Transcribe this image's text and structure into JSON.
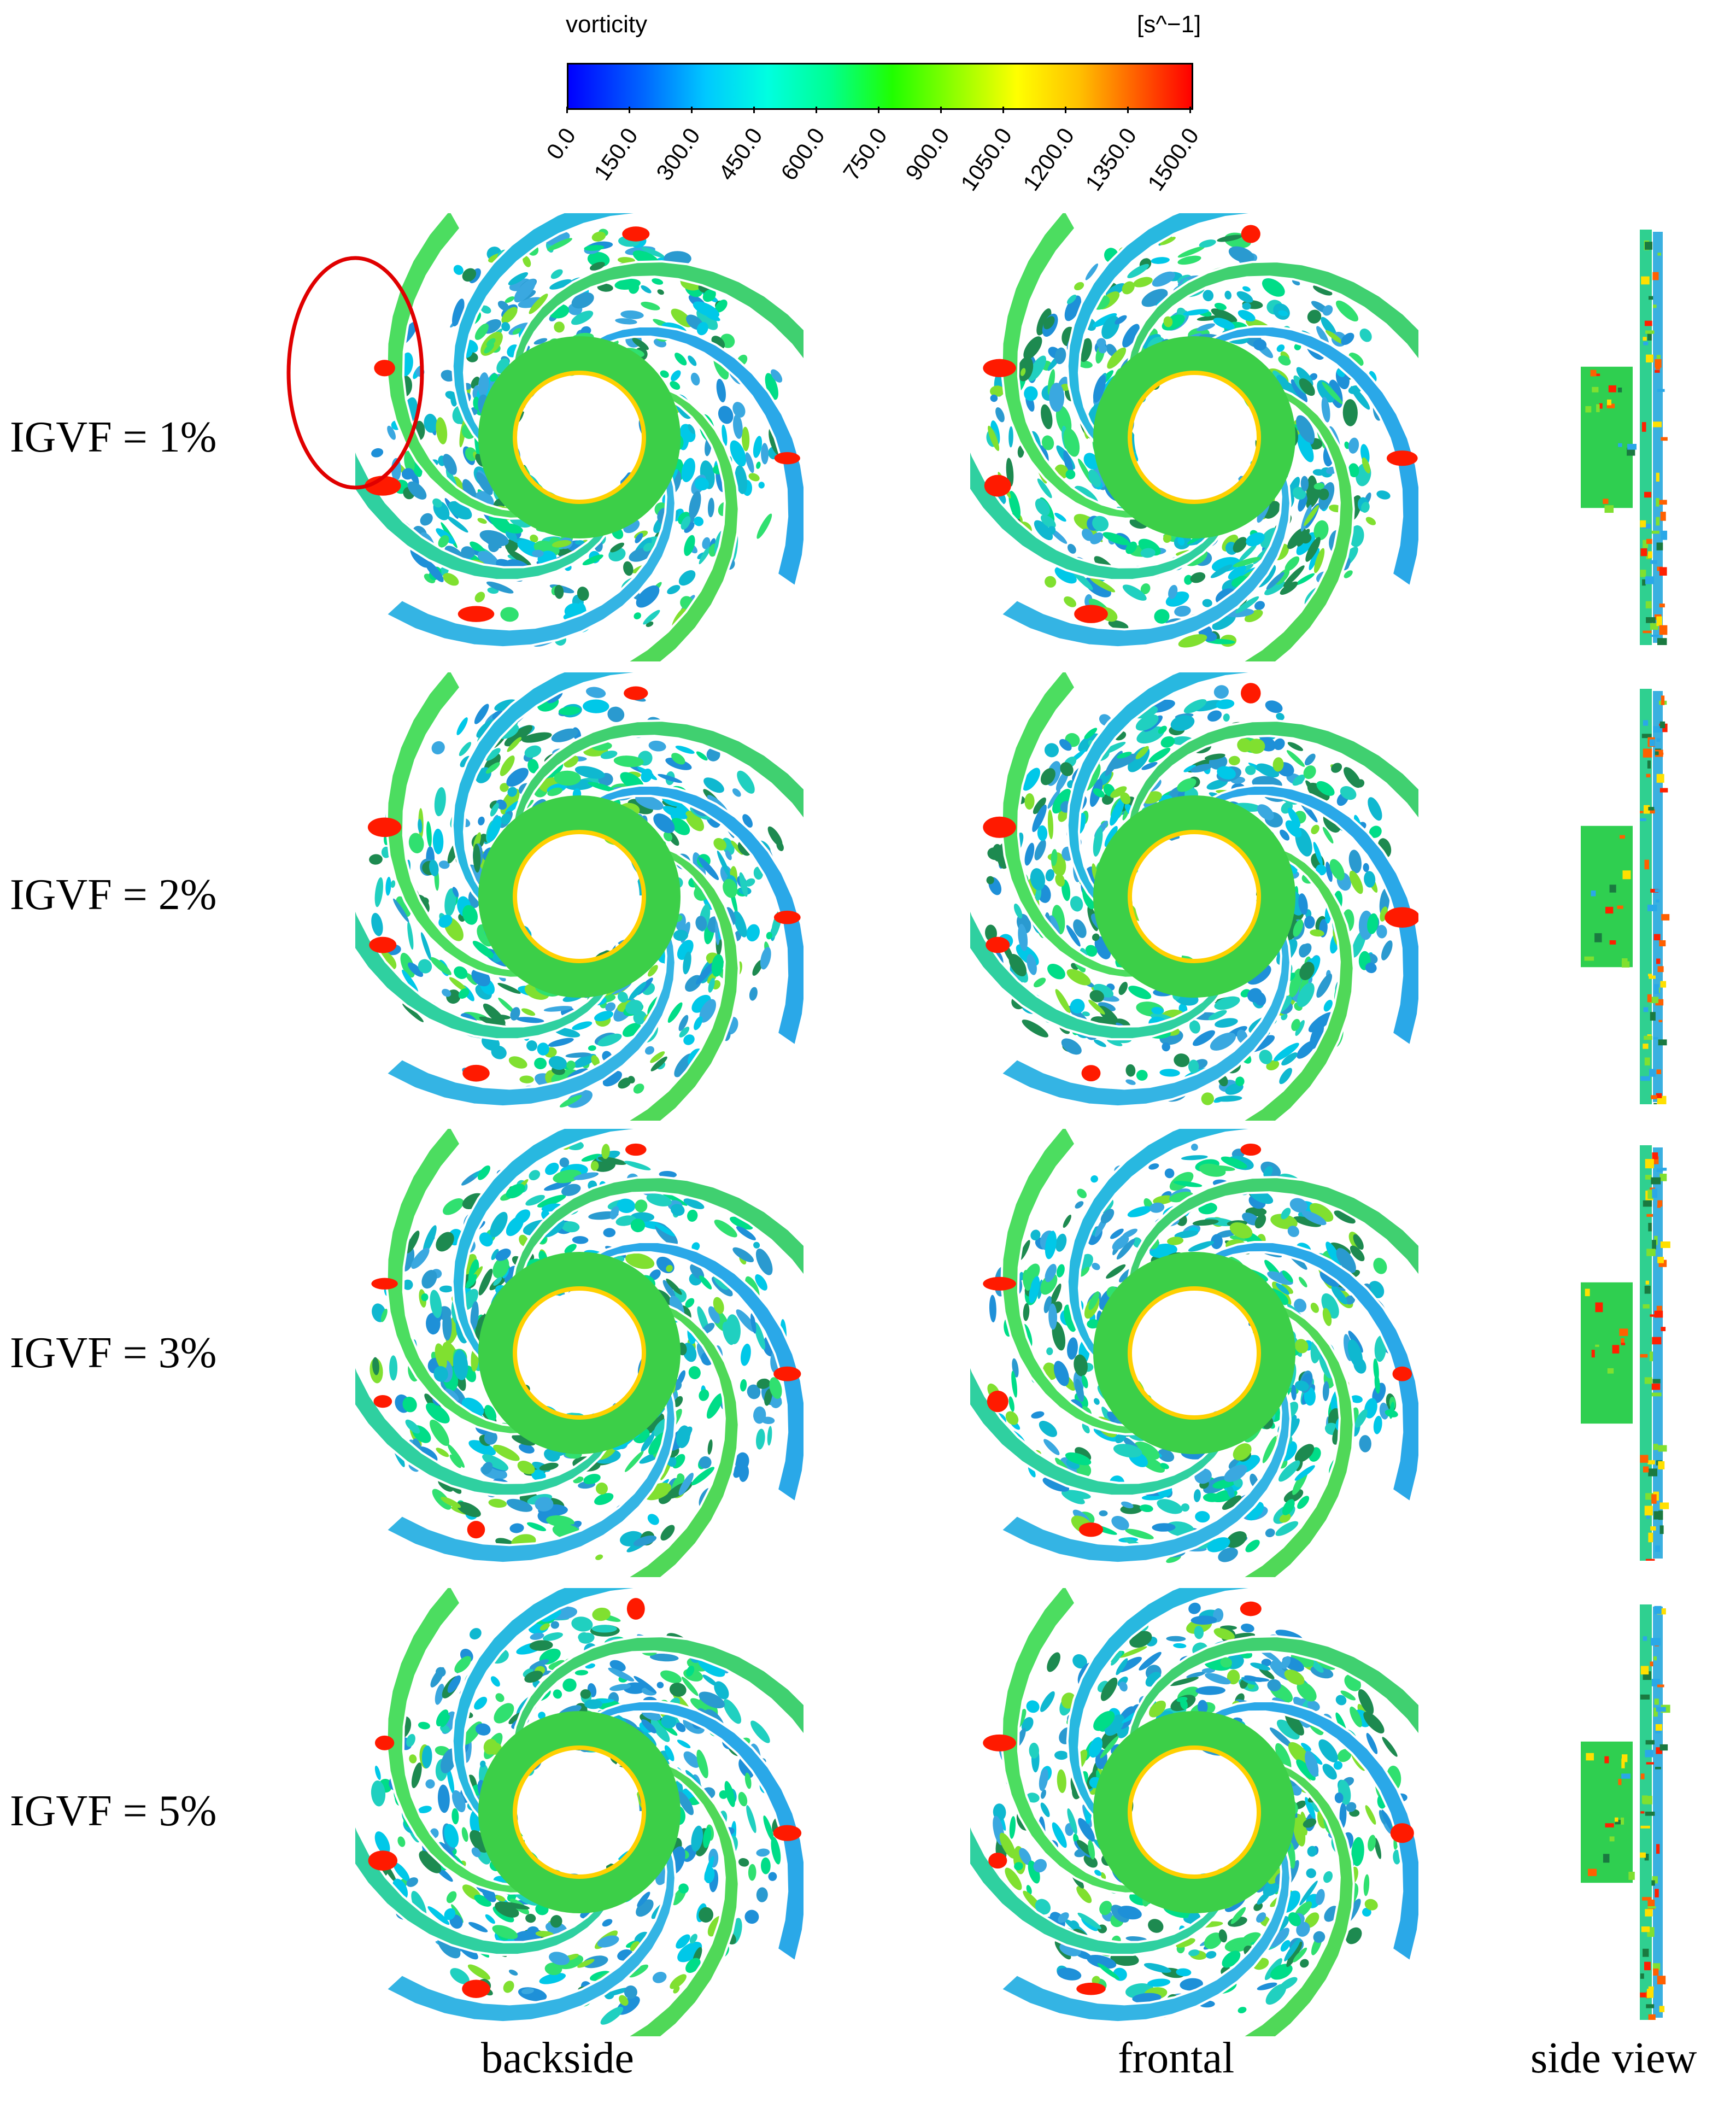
{
  "colorbar": {
    "title": "vorticity",
    "unit": "[s^−1]",
    "ticks": [
      "0.0",
      "150.0",
      "300.0",
      "450.0",
      "600.0",
      "750.0",
      "900.0",
      "1050.0",
      "1200.0",
      "1350.0",
      "1500.0"
    ],
    "colors": [
      "#0000ff",
      "#0066ff",
      "#00c8ff",
      "#00ffe0",
      "#00ff90",
      "#20ff00",
      "#90ff00",
      "#ffff00",
      "#ffc000",
      "#ff6000",
      "#ff0000"
    ]
  },
  "rows": [
    {
      "label": "IGVF = 1%"
    },
    {
      "label": "IGVF = 2%"
    },
    {
      "label": "IGVF = 3%"
    },
    {
      "label": "IGVF = 5%"
    }
  ],
  "columns": [
    {
      "label": "backside"
    },
    {
      "label": "frontal"
    },
    {
      "label": "side view"
    }
  ],
  "highlight": {
    "color": "#e00000"
  }
}
